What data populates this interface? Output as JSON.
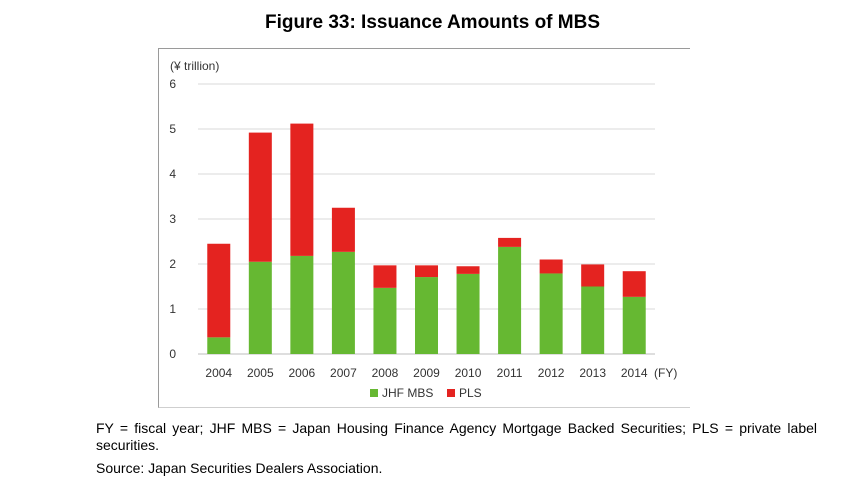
{
  "figure_title": "Figure 33: Issuance Amounts of MBS",
  "notes": "FY = fiscal year; JHF MBS = Japan Housing Finance Agency Mortgage Backed Securities; PLS = private label securities.",
  "source": "Source: Japan Securities Dealers Association.",
  "chart_data": {
    "type": "bar",
    "stacked": true,
    "unit_label": "(¥ trillion)",
    "x_unit_label": "(FY)",
    "categories": [
      "2004",
      "2005",
      "2006",
      "2007",
      "2008",
      "2009",
      "2010",
      "2011",
      "2012",
      "2013",
      "2014"
    ],
    "series": [
      {
        "name": "JHF MBS",
        "color": "#66b832",
        "values": [
          0.37,
          2.05,
          2.18,
          2.27,
          1.47,
          1.71,
          1.78,
          2.38,
          1.79,
          1.5,
          1.27
        ]
      },
      {
        "name": "PLS",
        "color": "#e42320",
        "values": [
          2.08,
          2.87,
          2.94,
          0.98,
          0.5,
          0.26,
          0.17,
          0.2,
          0.31,
          0.49,
          0.57
        ]
      }
    ],
    "ylim": [
      0,
      6
    ],
    "yticks": [
      "0",
      "1",
      "2",
      "3",
      "4",
      "5",
      "6"
    ],
    "grid": true,
    "legend_position": "bottom"
  }
}
